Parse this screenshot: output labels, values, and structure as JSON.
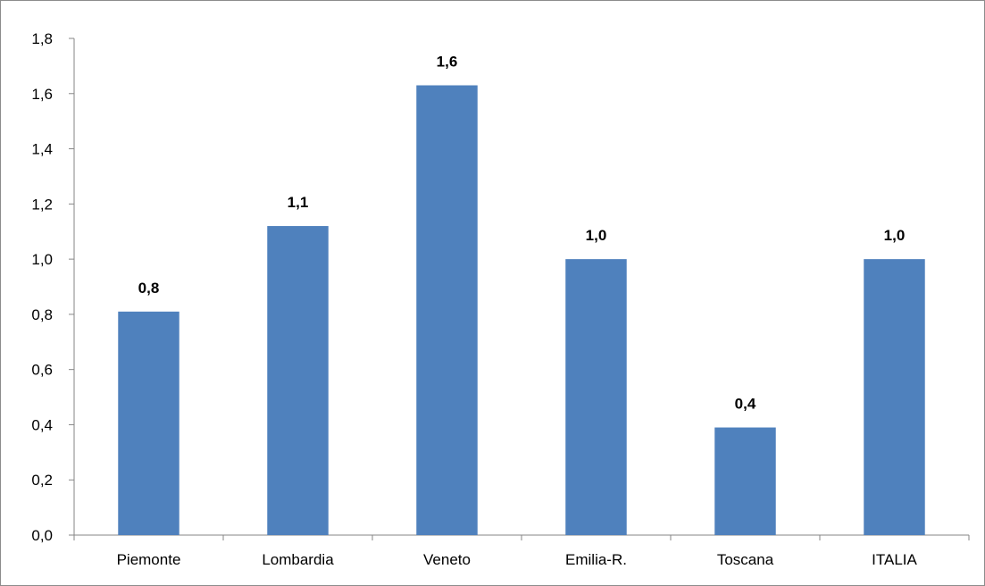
{
  "chart_data": {
    "type": "bar",
    "title": "",
    "xlabel": "",
    "ylabel": "",
    "categories": [
      "Piemonte",
      "Lombardia",
      "Veneto",
      "Emilia-R.",
      "Toscana",
      "ITALIA"
    ],
    "values": [
      0.81,
      1.12,
      1.63,
      1.0,
      0.39,
      1.0
    ],
    "data_labels": [
      "0,8",
      "1,1",
      "1,6",
      "1,0",
      "0,4",
      "1,0"
    ],
    "ylim": [
      0,
      1.8
    ],
    "y_ticks": [
      0,
      0.2,
      0.4,
      0.6,
      0.8,
      1.0,
      1.2,
      1.4,
      1.6,
      1.8
    ],
    "y_tick_labels": [
      "0,0",
      "0,2",
      "0,4",
      "0,6",
      "0,8",
      "1,0",
      "1,2",
      "1,4",
      "1,6",
      "1,8"
    ],
    "grid": false,
    "legend": "none",
    "bar_color": "#4F81BD"
  }
}
